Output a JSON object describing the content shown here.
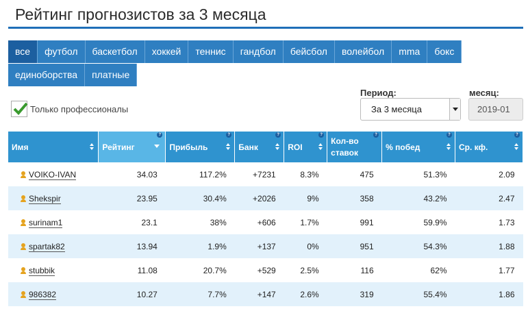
{
  "title": "Рейтинг прогнозистов за 3 месяца",
  "tabs_row1": [
    "все",
    "футбол",
    "баскетбол",
    "хоккей",
    "теннис",
    "гандбол",
    "бейсбол",
    "волейбол",
    "mma",
    "бокс"
  ],
  "tabs_row2": [
    "единоборства",
    "платные"
  ],
  "filters": {
    "pro_only_label": "Только профессионалы",
    "period_label": "Период:",
    "period_value": "За 3 месяца",
    "month_label": "месяц:",
    "month_value": "2019-01"
  },
  "columns": [
    "Имя",
    "Рейтинг",
    "Прибыль",
    "Банк",
    "ROI",
    "Кол-во ставок",
    "% побед",
    "Ср. кф."
  ],
  "help_glyph": "?",
  "rows": [
    [
      "VOIKO-IVAN",
      "34.03",
      "117.2%",
      "+7231",
      "8.3%",
      "475",
      "51.3%",
      "2.09"
    ],
    [
      "Shekspir",
      "23.95",
      "30.4%",
      "+2026",
      "9%",
      "358",
      "43.2%",
      "2.47"
    ],
    [
      "surinam1",
      "23.1",
      "38%",
      "+606",
      "1.7%",
      "991",
      "59.9%",
      "1.73"
    ],
    [
      "spartak82",
      "13.94",
      "1.9%",
      "+137",
      "0%",
      "951",
      "54.3%",
      "1.88"
    ],
    [
      "stubbik",
      "11.08",
      "20.7%",
      "+529",
      "2.5%",
      "116",
      "62%",
      "1.77"
    ],
    [
      "986382",
      "10.27",
      "7.7%",
      "+147",
      "2.6%",
      "319",
      "55.4%",
      "1.86"
    ]
  ],
  "colors": {
    "accent": "#2f93cf",
    "tab": "#2f7fc1",
    "tab_active": "#1c5fa0",
    "row_alt": "#e2f1fb",
    "user_icon": "#e5a31f",
    "check": "#3a9a2f"
  }
}
